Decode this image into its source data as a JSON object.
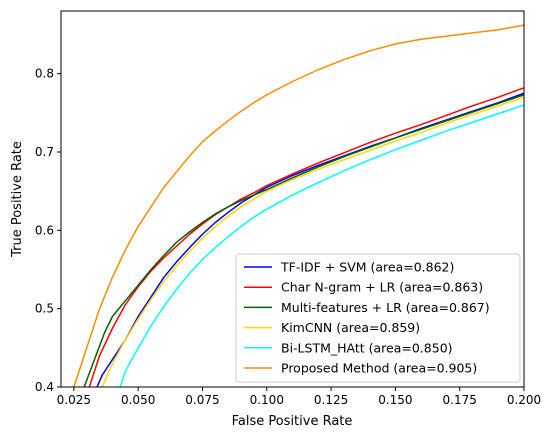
{
  "chart_data": {
    "type": "line",
    "title": "",
    "xlabel": "False Positive Rate",
    "ylabel": "True Positive Rate",
    "xlim": [
      0.02,
      0.2
    ],
    "ylim": [
      0.4,
      0.88
    ],
    "xticks": [
      0.025,
      0.05,
      0.075,
      0.1,
      0.125,
      0.15,
      0.175,
      0.2
    ],
    "xtick_labels": [
      "0.025",
      "0.050",
      "0.075",
      "0.100",
      "0.125",
      "0.150",
      "0.175",
      "0.200"
    ],
    "yticks": [
      0.4,
      0.5,
      0.6,
      0.7,
      0.8
    ],
    "ytick_labels": [
      "0.4",
      "0.5",
      "0.6",
      "0.7",
      "0.8"
    ],
    "grid": false,
    "legend_position": "bottom-right",
    "series": [
      {
        "name": "TF-IDF + SVM (area=0.862)",
        "color": "#0000ff",
        "x": [
          0.034,
          0.036,
          0.04,
          0.045,
          0.05,
          0.055,
          0.06,
          0.065,
          0.07,
          0.075,
          0.08,
          0.085,
          0.09,
          0.095,
          0.1,
          0.11,
          0.12,
          0.13,
          0.14,
          0.15,
          0.16,
          0.17,
          0.18,
          0.19,
          0.2
        ],
        "y": [
          0.4,
          0.415,
          0.435,
          0.46,
          0.49,
          0.515,
          0.54,
          0.56,
          0.578,
          0.595,
          0.61,
          0.623,
          0.635,
          0.645,
          0.655,
          0.67,
          0.683,
          0.695,
          0.707,
          0.718,
          0.73,
          0.741,
          0.752,
          0.763,
          0.775
        ]
      },
      {
        "name": "Char N-gram + LR (area=0.863)",
        "color": "#ff0000",
        "x": [
          0.031,
          0.035,
          0.04,
          0.045,
          0.05,
          0.055,
          0.06,
          0.065,
          0.07,
          0.075,
          0.08,
          0.085,
          0.09,
          0.095,
          0.1,
          0.11,
          0.12,
          0.13,
          0.14,
          0.15,
          0.16,
          0.17,
          0.18,
          0.19,
          0.2
        ],
        "y": [
          0.4,
          0.44,
          0.475,
          0.505,
          0.528,
          0.548,
          0.565,
          0.58,
          0.595,
          0.608,
          0.62,
          0.63,
          0.64,
          0.648,
          0.657,
          0.672,
          0.686,
          0.699,
          0.712,
          0.724,
          0.735,
          0.747,
          0.759,
          0.77,
          0.782
        ]
      },
      {
        "name": "Multi-features + LR (area=0.867)",
        "color": "#006400",
        "x": [
          0.029,
          0.033,
          0.037,
          0.04,
          0.045,
          0.05,
          0.055,
          0.06,
          0.065,
          0.07,
          0.075,
          0.08,
          0.085,
          0.09,
          0.095,
          0.1,
          0.11,
          0.12,
          0.13,
          0.14,
          0.15,
          0.16,
          0.17,
          0.18,
          0.19,
          0.2
        ],
        "y": [
          0.4,
          0.435,
          0.47,
          0.49,
          0.51,
          0.53,
          0.55,
          0.568,
          0.585,
          0.598,
          0.61,
          0.621,
          0.63,
          0.638,
          0.645,
          0.652,
          0.667,
          0.681,
          0.694,
          0.706,
          0.718,
          0.729,
          0.74,
          0.751,
          0.762,
          0.773
        ]
      },
      {
        "name": "KimCNN (area=0.859)",
        "color": "#ffd700",
        "x": [
          0.036,
          0.04,
          0.045,
          0.05,
          0.055,
          0.06,
          0.065,
          0.07,
          0.075,
          0.08,
          0.085,
          0.09,
          0.095,
          0.1,
          0.11,
          0.12,
          0.13,
          0.14,
          0.15,
          0.16,
          0.17,
          0.18,
          0.19,
          0.2
        ],
        "y": [
          0.4,
          0.43,
          0.46,
          0.487,
          0.512,
          0.535,
          0.555,
          0.573,
          0.59,
          0.605,
          0.618,
          0.63,
          0.64,
          0.65,
          0.665,
          0.678,
          0.69,
          0.702,
          0.714,
          0.725,
          0.737,
          0.748,
          0.759,
          0.77
        ]
      },
      {
        "name": "Bi-LSTM_HAtt (area=0.850)",
        "color": "#00ffff",
        "x": [
          0.043,
          0.045,
          0.05,
          0.055,
          0.06,
          0.065,
          0.07,
          0.075,
          0.08,
          0.085,
          0.09,
          0.095,
          0.1,
          0.11,
          0.12,
          0.13,
          0.14,
          0.15,
          0.16,
          0.17,
          0.18,
          0.19,
          0.2
        ],
        "y": [
          0.4,
          0.42,
          0.45,
          0.478,
          0.503,
          0.525,
          0.545,
          0.563,
          0.578,
          0.592,
          0.605,
          0.617,
          0.627,
          0.645,
          0.661,
          0.676,
          0.69,
          0.703,
          0.715,
          0.727,
          0.738,
          0.749,
          0.76
        ]
      },
      {
        "name": "Proposed Method (area=0.905)",
        "color": "#ff8c00",
        "x": [
          0.025,
          0.028,
          0.03,
          0.035,
          0.04,
          0.045,
          0.05,
          0.055,
          0.06,
          0.065,
          0.07,
          0.075,
          0.08,
          0.085,
          0.09,
          0.095,
          0.1,
          0.11,
          0.12,
          0.13,
          0.14,
          0.15,
          0.16,
          0.17,
          0.18,
          0.19,
          0.2
        ],
        "y": [
          0.4,
          0.43,
          0.45,
          0.5,
          0.54,
          0.575,
          0.605,
          0.63,
          0.655,
          0.675,
          0.695,
          0.713,
          0.727,
          0.74,
          0.752,
          0.763,
          0.773,
          0.79,
          0.805,
          0.818,
          0.829,
          0.838,
          0.844,
          0.848,
          0.852,
          0.856,
          0.862
        ]
      }
    ]
  }
}
